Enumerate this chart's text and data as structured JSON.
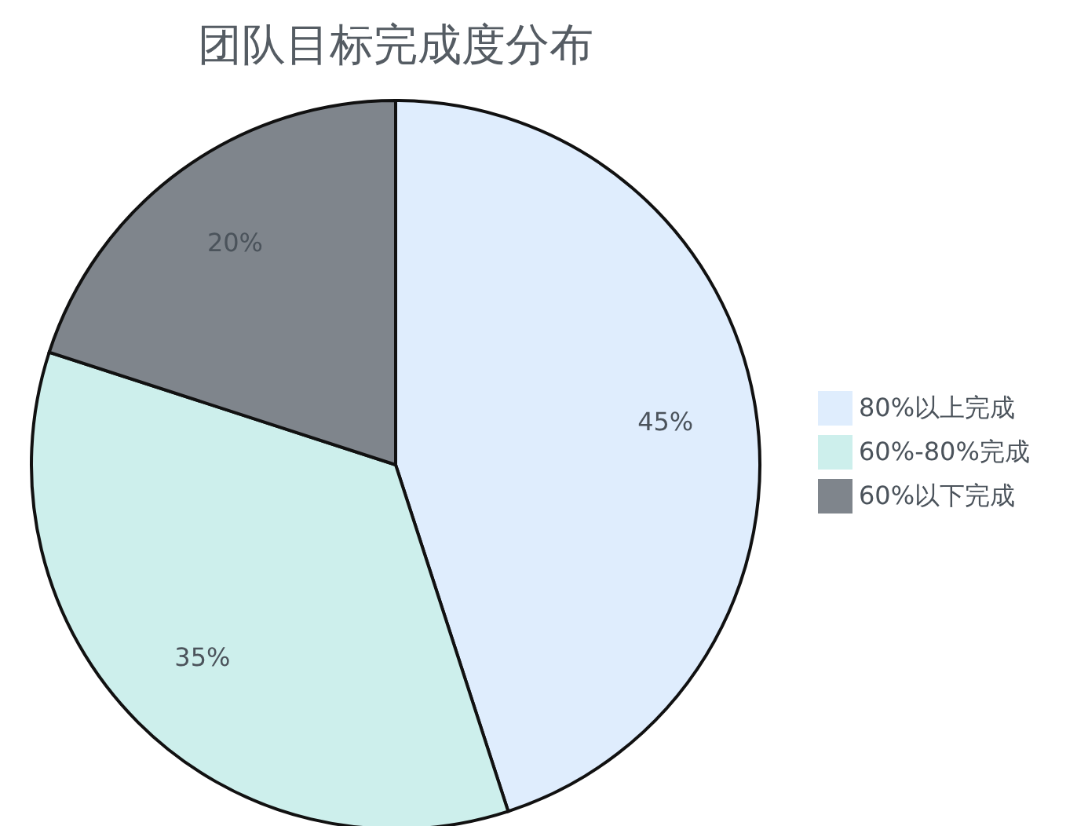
{
  "chart_data": {
    "type": "pie",
    "title": "团队目标完成度分布",
    "categories": [
      "80%以上完成",
      "60%-80%完成",
      "60%以下完成"
    ],
    "values": [
      45,
      35,
      20
    ],
    "colors": [
      "#dfedfd",
      "#cdefec",
      "#7f858c"
    ],
    "value_labels": [
      "45%",
      "35%",
      "20%"
    ],
    "legend": "right"
  }
}
